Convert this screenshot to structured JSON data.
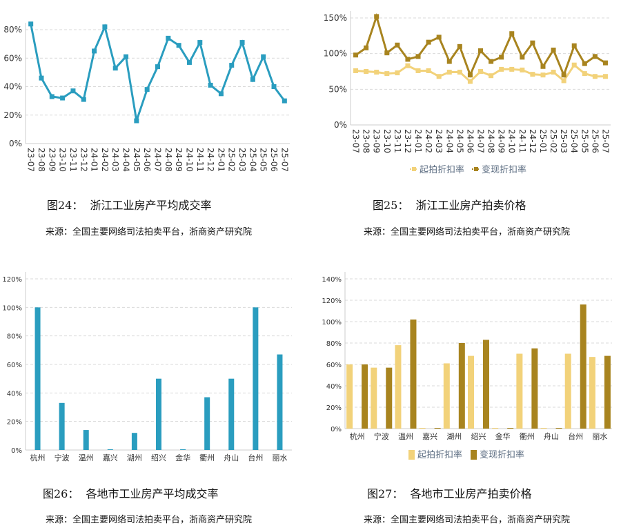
{
  "captions": [
    {
      "title": "图24：  浙江工业房产平均成交率",
      "source": "来源：全国主要网络司法拍卖平台，浙商资产研究院"
    },
    {
      "title": "图25：  浙江工业房产拍卖价格",
      "source": "来源：全国主要网络司法拍卖平台，浙商资产研究院"
    },
    {
      "title": "图26：  各地市工业房产平均成交率",
      "source": "来源：全国主要网络司法拍卖平台，浙商资产研究院"
    },
    {
      "title": "图27：  各地市工业房产拍卖价格",
      "source": "来源：全国主要网络司法拍卖平台，浙商资产研究院"
    }
  ],
  "colors": {
    "teal": "#2a9dbf",
    "light_gold": "#f2d27a",
    "dark_gold": "#a8841f",
    "grid": "#d9d9d9"
  },
  "chart_data": [
    {
      "type": "line",
      "ylim": [
        0,
        90
      ],
      "yticks": [
        0,
        20,
        40,
        60,
        80
      ],
      "ytick_suffix": "%",
      "grid": true,
      "legend": "none",
      "categories": [
        "23-07",
        "23-08",
        "23-09",
        "23-10",
        "23-11",
        "23-12",
        "24-01",
        "24-02",
        "24-03",
        "24-04",
        "24-05",
        "24-06",
        "24-07",
        "24-08",
        "24-09",
        "24-10",
        "24-11",
        "24-12",
        "25-01",
        "25-02",
        "25-03",
        "25-04",
        "25-05",
        "25-06",
        "25-07"
      ],
      "series": [
        {
          "values": [
            84,
            46,
            33,
            32,
            37,
            31,
            65,
            82,
            53,
            61,
            16,
            38,
            54,
            74,
            69,
            57,
            71,
            41,
            35,
            55,
            71,
            45,
            61,
            40,
            30
          ],
          "color": "#2a9dbf"
        }
      ]
    },
    {
      "type": "line",
      "ylim": [
        0,
        150
      ],
      "yticks": [
        0,
        50,
        100,
        150
      ],
      "ytick_suffix": "%",
      "grid": true,
      "legend": "bottom",
      "categories": [
        "23-07",
        "23-08",
        "23-09",
        "23-10",
        "23-11",
        "23-12",
        "24-01",
        "24-02",
        "24-03",
        "24-04",
        "24-05",
        "24-06",
        "24-07",
        "24-08",
        "24-09",
        "24-10",
        "24-11",
        "24-12",
        "25-01",
        "25-02",
        "25-03",
        "25-04",
        "25-05",
        "25-06",
        "25-07"
      ],
      "series": [
        {
          "name": "起拍折扣率",
          "color": "#f2d27a",
          "values": [
            76,
            75,
            74,
            72,
            73,
            83,
            76,
            76,
            68,
            74,
            74,
            61,
            75,
            69,
            78,
            78,
            77,
            71,
            70,
            74,
            62,
            84,
            72,
            68,
            68
          ]
        },
        {
          "name": "变现折扣率",
          "color": "#a8841f",
          "values": [
            98,
            108,
            152,
            101,
            112,
            92,
            96,
            116,
            123,
            89,
            110,
            70,
            104,
            89,
            95,
            128,
            95,
            115,
            82,
            105,
            70,
            111,
            86,
            96,
            87
          ]
        }
      ]
    },
    {
      "type": "bar",
      "ylim": [
        0,
        120
      ],
      "yticks": [
        0,
        20,
        40,
        60,
        80,
        100,
        120
      ],
      "ytick_suffix": "%",
      "grid": true,
      "legend": "none",
      "categories": [
        "杭州",
        "宁波",
        "温州",
        "嘉兴",
        "湖州",
        "绍兴",
        "金华",
        "衢州",
        "舟山",
        "台州",
        "丽水"
      ],
      "series": [
        {
          "values": [
            100,
            33,
            14,
            0,
            12,
            50,
            0,
            37,
            50,
            100,
            67
          ],
          "color": "#2a9dbf"
        }
      ]
    },
    {
      "type": "bar",
      "ylim": [
        0,
        140
      ],
      "yticks": [
        0,
        20,
        40,
        60,
        80,
        100,
        120,
        140
      ],
      "ytick_suffix": "%",
      "grid": true,
      "legend": "bottom",
      "categories": [
        "杭州",
        "宁波",
        "温州",
        "嘉兴",
        "湖州",
        "绍兴",
        "金华",
        "衢州",
        "舟山",
        "台州",
        "丽水"
      ],
      "series": [
        {
          "name": "起拍折扣率",
          "color": "#f2d27a",
          "values": [
            60,
            57,
            78,
            0,
            61,
            68,
            0,
            70,
            0,
            70,
            67
          ]
        },
        {
          "name": "变现折扣率",
          "color": "#a8841f",
          "values": [
            60,
            57,
            102,
            0,
            80,
            83,
            0,
            75,
            0,
            116,
            68
          ]
        }
      ]
    }
  ]
}
